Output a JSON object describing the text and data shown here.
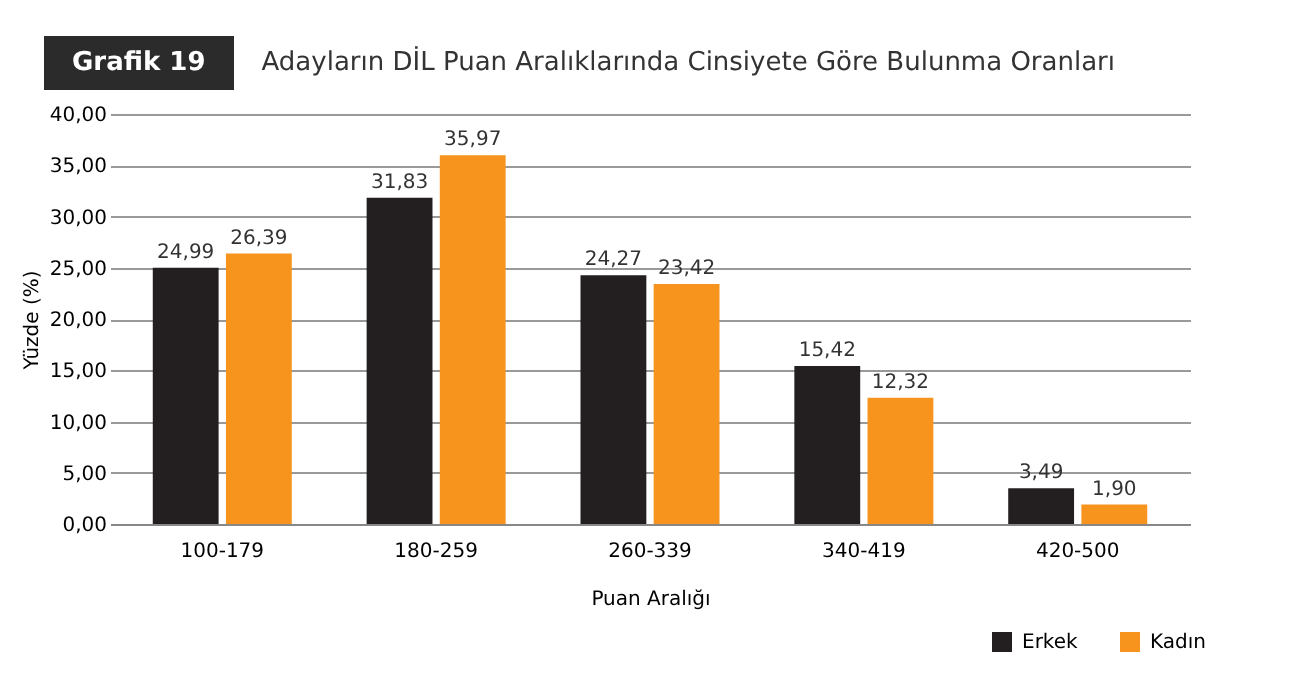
{
  "chart_data": {
    "type": "bar",
    "title": "Adayların DİL Puan Aralıklarında Cinsiyete Göre Bulunma Oranları",
    "annotations": [
      "Grafik 19"
    ],
    "xlabel": "Puan Aralığı",
    "ylabel": "Yüzde (%)",
    "categories": [
      "100-179",
      "180-259",
      "260-339",
      "340-419",
      "420-500"
    ],
    "series": [
      {
        "name": "Erkek",
        "color": "#231f20",
        "values": [
          24.99,
          31.83,
          24.27,
          15.42,
          3.49
        ],
        "value_labels": [
          "24,99",
          "31,83",
          "24,27",
          "15,42",
          "3,49"
        ]
      },
      {
        "name": "Kadın",
        "color": "#f7941d",
        "values": [
          26.39,
          35.97,
          23.42,
          12.32,
          1.9
        ],
        "value_labels": [
          "26,39",
          "35,97",
          "23,42",
          "12,32",
          "1,90"
        ]
      }
    ],
    "ylim": [
      0,
      40
    ],
    "yticks": [
      {
        "value": 0,
        "label": "0,00"
      },
      {
        "value": 5,
        "label": "5,00"
      },
      {
        "value": 10,
        "label": "10,00"
      },
      {
        "value": 15,
        "label": "15,00"
      },
      {
        "value": 20,
        "label": "20,00"
      },
      {
        "value": 25,
        "label": "25,00"
      },
      {
        "value": 30,
        "label": "30,00"
      },
      {
        "value": 35,
        "label": "35,00"
      },
      {
        "value": 40,
        "label": "40,00"
      }
    ],
    "grid": "y",
    "legend": "bottom right"
  }
}
